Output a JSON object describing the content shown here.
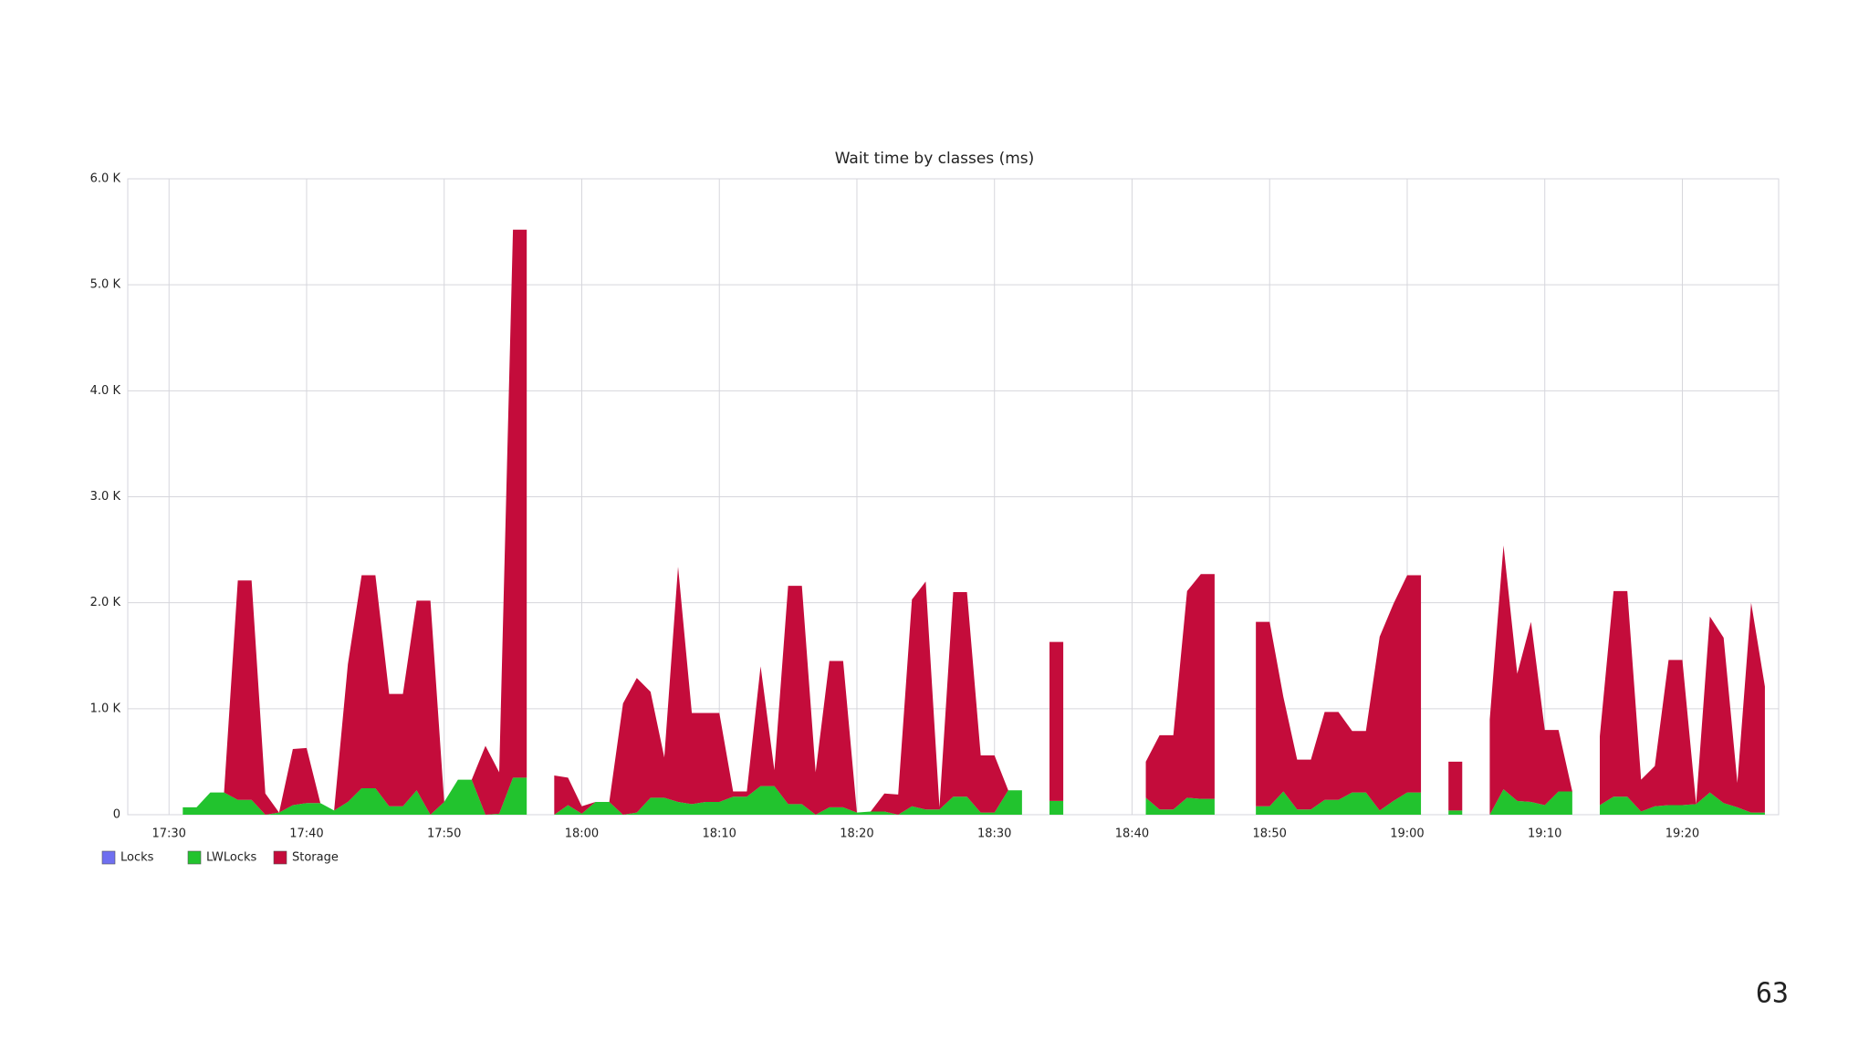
{
  "chart_data": {
    "type": "stacked-area",
    "title": "Wait time by classes (ms)",
    "x": [
      "17:28",
      "17:29",
      "17:30",
      "17:31",
      "17:32",
      "17:33",
      "17:34",
      "17:35",
      "17:36",
      "17:37",
      "17:38",
      "17:39",
      "17:40",
      "17:41",
      "17:42",
      "17:43",
      "17:44",
      "17:45",
      "17:46",
      "17:47",
      "17:48",
      "17:49",
      "17:50",
      "17:51",
      "17:52",
      "17:53",
      "17:54",
      "17:55",
      "17:56",
      "17:57",
      "17:58",
      "17:59",
      "18:00",
      "18:01",
      "18:02",
      "18:03",
      "18:04",
      "18:05",
      "18:06",
      "18:07",
      "18:08",
      "18:09",
      "18:10",
      "18:11",
      "18:12",
      "18:13",
      "18:14",
      "18:15",
      "18:16",
      "18:17",
      "18:18",
      "18:19",
      "18:20",
      "18:21",
      "18:22",
      "18:23",
      "18:24",
      "18:25",
      "18:26",
      "18:27",
      "18:28",
      "18:29",
      "18:30",
      "18:31",
      "18:32",
      "18:33",
      "18:34",
      "18:35",
      "18:36",
      "18:37",
      "18:38",
      "18:39",
      "18:40",
      "18:41",
      "18:42",
      "18:43",
      "18:44",
      "18:45",
      "18:46",
      "18:47",
      "18:48",
      "18:49",
      "18:50",
      "18:51",
      "18:52",
      "18:53",
      "18:54",
      "18:55",
      "18:56",
      "18:57",
      "18:58",
      "18:59",
      "19:00",
      "19:01",
      "19:02",
      "19:03",
      "19:04",
      "19:05",
      "19:06",
      "19:07",
      "19:08",
      "19:09",
      "19:10",
      "19:11",
      "19:12",
      "19:13",
      "19:14",
      "19:15",
      "19:16",
      "19:17",
      "19:18",
      "19:19",
      "19:20",
      "19:21",
      "19:22",
      "19:23",
      "19:24",
      "19:25",
      "19:26"
    ],
    "series": [
      {
        "name": "Locks",
        "color": "#6f6ff0",
        "values": [
          null,
          null,
          null,
          0,
          0,
          0,
          0,
          0,
          0,
          0,
          0,
          0,
          0,
          0,
          0,
          0,
          0,
          0,
          0,
          0,
          0,
          0,
          0,
          0,
          0,
          0,
          0,
          0,
          0,
          null,
          0,
          0,
          0,
          0,
          0,
          0,
          0,
          0,
          0,
          0,
          0,
          0,
          0,
          0,
          0,
          0,
          0,
          0,
          0,
          0,
          0,
          0,
          0,
          0,
          0,
          0,
          0,
          0,
          0,
          0,
          0,
          0,
          0,
          0,
          0,
          null,
          0,
          0,
          null,
          null,
          null,
          null,
          null,
          0,
          0,
          0,
          0,
          0,
          0,
          null,
          null,
          0,
          0,
          0,
          0,
          0,
          0,
          0,
          0,
          0,
          0,
          0,
          0,
          0,
          null,
          0,
          0,
          null,
          0,
          0,
          0,
          0,
          0,
          0,
          0,
          null,
          0,
          0,
          0,
          0,
          0,
          0,
          0,
          0,
          0,
          0,
          0,
          0,
          0
        ]
      },
      {
        "name": "LWLocks",
        "color": "#22c32e",
        "values": [
          null,
          null,
          null,
          70,
          70,
          210,
          210,
          140,
          140,
          0,
          20,
          90,
          110,
          110,
          40,
          120,
          250,
          250,
          80,
          80,
          230,
          0,
          120,
          330,
          330,
          0,
          10,
          350,
          350,
          null,
          0,
          90,
          10,
          120,
          120,
          0,
          20,
          160,
          160,
          120,
          100,
          120,
          120,
          170,
          170,
          270,
          270,
          100,
          100,
          0,
          70,
          70,
          20,
          30,
          30,
          0,
          80,
          50,
          50,
          170,
          170,
          20,
          20,
          230,
          230,
          null,
          130,
          130,
          null,
          null,
          null,
          null,
          null,
          160,
          50,
          50,
          160,
          150,
          150,
          null,
          null,
          80,
          80,
          220,
          50,
          50,
          140,
          140,
          210,
          210,
          40,
          130,
          210,
          210,
          null,
          40,
          40,
          null,
          0,
          240,
          130,
          120,
          90,
          220,
          220,
          null,
          90,
          170,
          170,
          30,
          80,
          90,
          90,
          100,
          210,
          110,
          70,
          20,
          20
        ]
      },
      {
        "name": "Storage",
        "color": "#c40c3b",
        "values": [
          null,
          null,
          null,
          0,
          0,
          0,
          0,
          2070,
          2070,
          200,
          0,
          530,
          520,
          0,
          0,
          1300,
          2010,
          2010,
          1060,
          1060,
          1790,
          2020,
          0,
          0,
          0,
          650,
          390,
          5170,
          5170,
          null,
          370,
          260,
          70,
          0,
          0,
          1050,
          1270,
          1000,
          380,
          2220,
          860,
          840,
          840,
          50,
          50,
          1130,
          150,
          2060,
          2060,
          400,
          1380,
          1380,
          0,
          0,
          170,
          190,
          1950,
          2150,
          20,
          1930,
          1930,
          540,
          540,
          0,
          0,
          null,
          1500,
          1500,
          null,
          null,
          null,
          null,
          null,
          340,
          700,
          700,
          1950,
          2120,
          2120,
          null,
          null,
          1740,
          1740,
          890,
          470,
          470,
          830,
          830,
          580,
          580,
          1640,
          1860,
          2050,
          2050,
          null,
          460,
          460,
          null,
          900,
          2300,
          1200,
          1700,
          710,
          580,
          0,
          null,
          650,
          1940,
          1940,
          300,
          380,
          1370,
          1370,
          0,
          1660,
          1560,
          230,
          1980,
          1190
        ]
      }
    ],
    "xlim": [
      "17:27",
      "19:27"
    ],
    "xticks": [
      "17:30",
      "17:40",
      "17:50",
      "18:00",
      "18:10",
      "18:20",
      "18:30",
      "18:40",
      "18:50",
      "19:00",
      "19:10",
      "19:20"
    ],
    "ylim": [
      0,
      6000
    ],
    "yticks": [
      0,
      {
        "value": 1000,
        "label": "1.0 K"
      },
      {
        "value": 2000,
        "label": "2.0 K"
      },
      {
        "value": 3000,
        "label": "3.0 K"
      },
      {
        "value": 4000,
        "label": "4.0 K"
      },
      {
        "value": 5000,
        "label": "5.0 K"
      },
      {
        "value": 6000,
        "label": "6.0 K"
      }
    ],
    "grid": true,
    "legend": "bottom-left"
  },
  "page_number": "63"
}
